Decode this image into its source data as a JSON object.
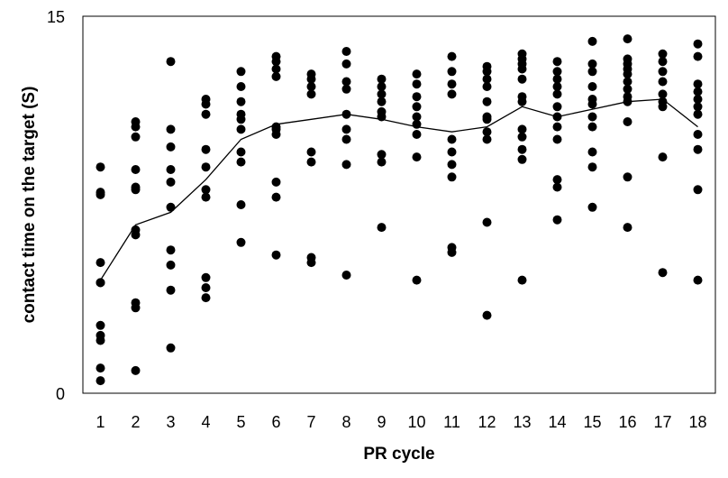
{
  "chart_data": {
    "type": "scatter",
    "title": "",
    "xlabel": "PR cycle",
    "ylabel": "contact time on the target (S)",
    "xlim": [
      0.5,
      18.5
    ],
    "ylim": [
      0,
      15
    ],
    "y_ticks": [
      "0",
      "15"
    ],
    "categories": [
      "1",
      "2",
      "3",
      "4",
      "5",
      "6",
      "7",
      "8",
      "9",
      "10",
      "11",
      "12",
      "13",
      "14",
      "15",
      "16",
      "17",
      "18"
    ],
    "grid": false,
    "legend": "none",
    "colors": {
      "points": "#000000",
      "line": "#000000",
      "frame": "#000000"
    },
    "points": [
      [
        1,
        9.0
      ],
      [
        1,
        8.0
      ],
      [
        1,
        7.9
      ],
      [
        1,
        5.2
      ],
      [
        1,
        4.4
      ],
      [
        1,
        4.4
      ],
      [
        1,
        2.7
      ],
      [
        1,
        2.3
      ],
      [
        1,
        2.1
      ],
      [
        1,
        1.0
      ],
      [
        1,
        0.5
      ],
      [
        2,
        10.8
      ],
      [
        2,
        10.6
      ],
      [
        2,
        10.2
      ],
      [
        2,
        8.9
      ],
      [
        2,
        8.2
      ],
      [
        2,
        8.1
      ],
      [
        2,
        6.5
      ],
      [
        2,
        6.3
      ],
      [
        2,
        3.6
      ],
      [
        2,
        3.4
      ],
      [
        2,
        0.9
      ],
      [
        3,
        13.2
      ],
      [
        3,
        10.5
      ],
      [
        3,
        9.8
      ],
      [
        3,
        8.9
      ],
      [
        3,
        8.4
      ],
      [
        3,
        7.4
      ],
      [
        3,
        5.7
      ],
      [
        3,
        5.1
      ],
      [
        3,
        4.1
      ],
      [
        3,
        1.8
      ],
      [
        4,
        11.7
      ],
      [
        4,
        11.5
      ],
      [
        4,
        11.1
      ],
      [
        4,
        9.7
      ],
      [
        4,
        9.0
      ],
      [
        4,
        8.1
      ],
      [
        4,
        7.8
      ],
      [
        4,
        4.6
      ],
      [
        4,
        4.2
      ],
      [
        4,
        3.8
      ],
      [
        5,
        12.8
      ],
      [
        5,
        12.2
      ],
      [
        5,
        11.6
      ],
      [
        5,
        11.1
      ],
      [
        5,
        10.9
      ],
      [
        5,
        10.5
      ],
      [
        5,
        9.6
      ],
      [
        5,
        9.2
      ],
      [
        5,
        7.5
      ],
      [
        5,
        6.0
      ],
      [
        6,
        13.4
      ],
      [
        6,
        13.2
      ],
      [
        6,
        12.9
      ],
      [
        6,
        12.6
      ],
      [
        6,
        10.6
      ],
      [
        6,
        10.5
      ],
      [
        6,
        10.3
      ],
      [
        6,
        8.4
      ],
      [
        6,
        7.8
      ],
      [
        6,
        5.5
      ],
      [
        7,
        12.7
      ],
      [
        7,
        12.5
      ],
      [
        7,
        12.2
      ],
      [
        7,
        11.9
      ],
      [
        7,
        9.6
      ],
      [
        7,
        9.2
      ],
      [
        7,
        5.4
      ],
      [
        7,
        5.2
      ],
      [
        8,
        13.6
      ],
      [
        8,
        13.1
      ],
      [
        8,
        12.4
      ],
      [
        8,
        12.1
      ],
      [
        8,
        11.1
      ],
      [
        8,
        10.5
      ],
      [
        8,
        10.1
      ],
      [
        8,
        9.1
      ],
      [
        8,
        4.7
      ],
      [
        9,
        12.5
      ],
      [
        9,
        12.2
      ],
      [
        9,
        11.9
      ],
      [
        9,
        11.6
      ],
      [
        9,
        11.2
      ],
      [
        9,
        11.0
      ],
      [
        9,
        9.5
      ],
      [
        9,
        9.2
      ],
      [
        9,
        6.6
      ],
      [
        10,
        12.7
      ],
      [
        10,
        12.3
      ],
      [
        10,
        11.8
      ],
      [
        10,
        11.4
      ],
      [
        10,
        11.0
      ],
      [
        10,
        10.7
      ],
      [
        10,
        10.3
      ],
      [
        10,
        9.4
      ],
      [
        10,
        4.5
      ],
      [
        11,
        13.4
      ],
      [
        11,
        12.8
      ],
      [
        11,
        12.3
      ],
      [
        11,
        11.9
      ],
      [
        11,
        10.1
      ],
      [
        11,
        9.6
      ],
      [
        11,
        9.1
      ],
      [
        11,
        8.6
      ],
      [
        11,
        5.8
      ],
      [
        11,
        5.6
      ],
      [
        12,
        13.0
      ],
      [
        12,
        12.8
      ],
      [
        12,
        12.5
      ],
      [
        12,
        12.2
      ],
      [
        12,
        11.6
      ],
      [
        12,
        11.0
      ],
      [
        12,
        10.9
      ],
      [
        12,
        10.4
      ],
      [
        12,
        10.1
      ],
      [
        12,
        6.8
      ],
      [
        12,
        3.1
      ],
      [
        13,
        13.5
      ],
      [
        13,
        13.3
      ],
      [
        13,
        13.1
      ],
      [
        13,
        12.9
      ],
      [
        13,
        12.5
      ],
      [
        13,
        11.8
      ],
      [
        13,
        11.6
      ],
      [
        13,
        10.5
      ],
      [
        13,
        10.2
      ],
      [
        13,
        9.7
      ],
      [
        13,
        9.3
      ],
      [
        13,
        4.5
      ],
      [
        14,
        13.2
      ],
      [
        14,
        12.8
      ],
      [
        14,
        12.5
      ],
      [
        14,
        12.2
      ],
      [
        14,
        11.9
      ],
      [
        14,
        11.4
      ],
      [
        14,
        11.0
      ],
      [
        14,
        10.6
      ],
      [
        14,
        10.1
      ],
      [
        14,
        8.5
      ],
      [
        14,
        8.2
      ],
      [
        14,
        6.9
      ],
      [
        15,
        14.0
      ],
      [
        15,
        13.1
      ],
      [
        15,
        12.8
      ],
      [
        15,
        12.2
      ],
      [
        15,
        11.7
      ],
      [
        15,
        11.5
      ],
      [
        15,
        11.0
      ],
      [
        15,
        10.6
      ],
      [
        15,
        9.6
      ],
      [
        15,
        9.0
      ],
      [
        15,
        7.4
      ],
      [
        16,
        14.1
      ],
      [
        16,
        13.3
      ],
      [
        16,
        13.1
      ],
      [
        16,
        12.9
      ],
      [
        16,
        12.7
      ],
      [
        16,
        12.4
      ],
      [
        16,
        12.1
      ],
      [
        16,
        11.8
      ],
      [
        16,
        11.6
      ],
      [
        16,
        10.8
      ],
      [
        16,
        8.6
      ],
      [
        16,
        6.6
      ],
      [
        17,
        13.5
      ],
      [
        17,
        13.2
      ],
      [
        17,
        12.8
      ],
      [
        17,
        12.4
      ],
      [
        17,
        11.9
      ],
      [
        17,
        11.6
      ],
      [
        17,
        11.4
      ],
      [
        17,
        9.4
      ],
      [
        17,
        4.8
      ],
      [
        18,
        13.9
      ],
      [
        18,
        13.4
      ],
      [
        18,
        12.3
      ],
      [
        18,
        12.0
      ],
      [
        18,
        11.7
      ],
      [
        18,
        11.4
      ],
      [
        18,
        11.1
      ],
      [
        18,
        10.3
      ],
      [
        18,
        9.7
      ],
      [
        18,
        8.1
      ],
      [
        18,
        4.5
      ]
    ],
    "mean_line": [
      4.5,
      6.7,
      7.2,
      8.5,
      10.1,
      10.7,
      10.9,
      11.1,
      10.9,
      10.6,
      10.4,
      10.6,
      11.4,
      11.0,
      11.3,
      11.6,
      11.7,
      10.6
    ]
  }
}
